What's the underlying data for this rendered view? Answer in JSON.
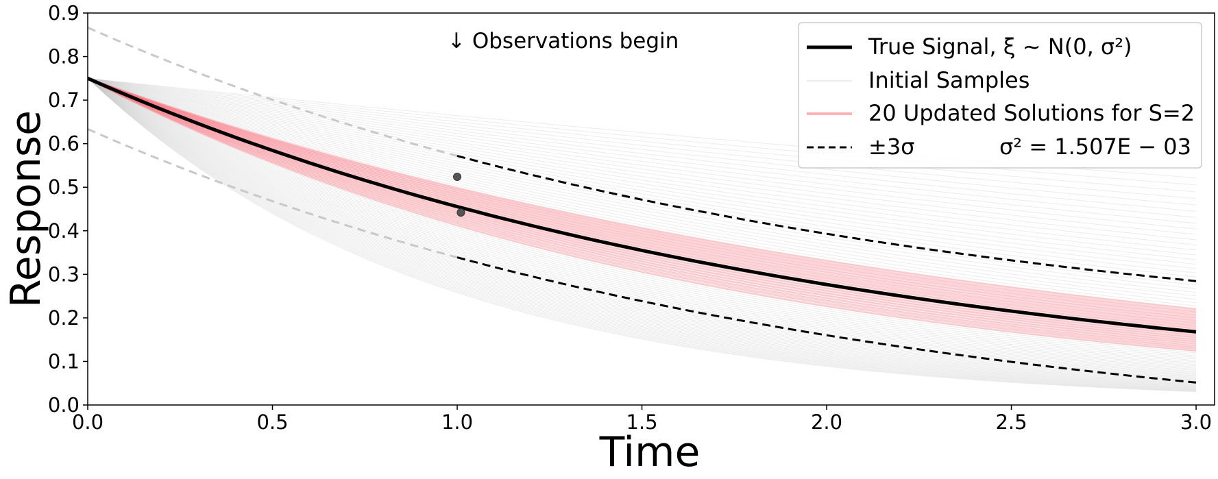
{
  "chart_data": {
    "type": "line",
    "title": "",
    "xlabel": "Time",
    "ylabel": "Response",
    "xlim": [
      0,
      3.05
    ],
    "ylim": [
      0,
      0.9
    ],
    "xticks": [
      "0.0",
      "0.5",
      "1.0",
      "1.5",
      "2.0",
      "2.5",
      "3.0"
    ],
    "yticks": [
      "0.0",
      "0.1",
      "0.2",
      "0.3",
      "0.4",
      "0.5",
      "0.6",
      "0.7",
      "0.8",
      "0.9"
    ],
    "grid": false,
    "legend_position": "top-right",
    "legend": [
      {
        "label": "True Signal, ξ ~ N(0, σ²)",
        "style": "solid-black-thick"
      },
      {
        "label": "Initial Samples",
        "style": "solid-lightgray"
      },
      {
        "label": "20 Updated Solutions for S=2",
        "style": "solid-pink"
      },
      {
        "label": "±3σ",
        "style": "dashed-black",
        "extra": "σ² = 1.507E − 03"
      }
    ],
    "annotation": "↓ Observations begin",
    "annotation_x": 1.0,
    "initial_value": 0.75,
    "true_signal": {
      "name": "True Signal, ξ ~ N(0, σ²)",
      "x0": 0.75,
      "x_end": 3.0,
      "y_end": 0.168,
      "model": "exponential decay"
    },
    "sigma_band": {
      "offset": 0.1165,
      "observed_from": 1.0
    },
    "initial_samples": {
      "count": 90,
      "y_at_3_range": [
        0.03,
        0.53
      ]
    },
    "updated_solutions": {
      "count": 20,
      "y_at_3_range": [
        0.125,
        0.22
      ]
    },
    "observations": [
      {
        "x": 1.0,
        "y": 0.524
      },
      {
        "x": 1.01,
        "y": 0.442
      }
    ],
    "colors": {
      "true_signal": "#000000",
      "initial_samples": "#c8c8c8",
      "updated_solutions": "#ff6b78",
      "sigma_observed": "#000000",
      "sigma_prior": "#c8c8c8",
      "observation_points": "#555555"
    }
  }
}
